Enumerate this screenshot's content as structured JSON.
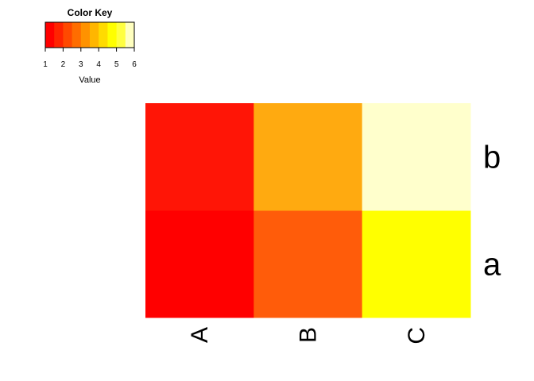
{
  "chart_data": {
    "type": "heatmap",
    "color_key": {
      "title": "Color Key",
      "xlabel": "Value",
      "ticks": [
        "1",
        "2",
        "3",
        "4",
        "5",
        "6"
      ],
      "range": [
        1,
        6
      ],
      "colors": [
        "#FF0000",
        "#FF2400",
        "#FF4900",
        "#FF6D00",
        "#FF9200",
        "#FFB600",
        "#FFDB00",
        "#FFFF00",
        "#FFFF40",
        "#FFFFBF"
      ]
    },
    "columns": [
      "A",
      "B",
      "C"
    ],
    "rows": [
      "a",
      "b"
    ],
    "values": [
      [
        1,
        3,
        5
      ],
      [
        2,
        4,
        6
      ]
    ],
    "cell_colors": [
      [
        "#FF0000",
        "#FF5C0A",
        "#FFFF00"
      ],
      [
        "#FF1506",
        "#FFAA10",
        "#FFFFCC"
      ]
    ]
  }
}
